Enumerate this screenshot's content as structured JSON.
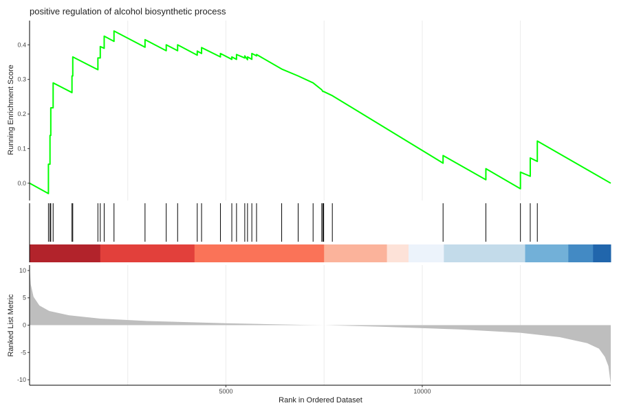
{
  "chart_data": {
    "type": "gsea",
    "title": "positive regulation of alcohol biosynthetic process",
    "xlabel": "Rank in Ordered Dataset",
    "x_range": [
      0,
      14800
    ],
    "x_ticks": [
      5000,
      10000
    ],
    "enrichment": {
      "ylabel": "Running Enrichment Score",
      "ylim": [
        -0.05,
        0.47
      ],
      "y_ticks": [
        0.0,
        0.1,
        0.2,
        0.3,
        0.4
      ],
      "y_tick_labels": [
        "0.0",
        "0.1",
        "0.2",
        "0.3",
        "0.4"
      ],
      "line_color": "#00ff00",
      "points": [
        [
          0,
          0.0
        ],
        [
          480,
          -0.03
        ],
        [
          480,
          0.055
        ],
        [
          520,
          0.055
        ],
        [
          520,
          0.138
        ],
        [
          540,
          0.138
        ],
        [
          540,
          0.218
        ],
        [
          600,
          0.218
        ],
        [
          600,
          0.29
        ],
        [
          1080,
          0.262
        ],
        [
          1080,
          0.31
        ],
        [
          1100,
          0.31
        ],
        [
          1100,
          0.365
        ],
        [
          1740,
          0.328
        ],
        [
          1740,
          0.362
        ],
        [
          1800,
          0.362
        ],
        [
          1800,
          0.395
        ],
        [
          1900,
          0.39
        ],
        [
          1900,
          0.425
        ],
        [
          2150,
          0.41
        ],
        [
          2150,
          0.44
        ],
        [
          2940,
          0.393
        ],
        [
          2940,
          0.415
        ],
        [
          3480,
          0.383
        ],
        [
          3480,
          0.4
        ],
        [
          3770,
          0.383
        ],
        [
          3770,
          0.4
        ],
        [
          4270,
          0.37
        ],
        [
          4270,
          0.382
        ],
        [
          4380,
          0.375
        ],
        [
          4380,
          0.392
        ],
        [
          4860,
          0.365
        ],
        [
          4860,
          0.375
        ],
        [
          5150,
          0.358
        ],
        [
          5150,
          0.365
        ],
        [
          5270,
          0.358
        ],
        [
          5270,
          0.372
        ],
        [
          5480,
          0.362
        ],
        [
          5480,
          0.368
        ],
        [
          5550,
          0.357
        ],
        [
          5550,
          0.365
        ],
        [
          5660,
          0.358
        ],
        [
          5660,
          0.375
        ],
        [
          5780,
          0.368
        ],
        [
          5780,
          0.372
        ],
        [
          6420,
          0.33
        ],
        [
          6840,
          0.31
        ],
        [
          7220,
          0.29
        ],
        [
          7440,
          0.27
        ],
        [
          7470,
          0.265
        ],
        [
          7490,
          0.265
        ],
        [
          7710,
          0.253
        ],
        [
          10530,
          0.058
        ],
        [
          10530,
          0.08
        ],
        [
          11620,
          0.01
        ],
        [
          11620,
          0.042
        ],
        [
          12500,
          -0.016
        ],
        [
          12500,
          0.032
        ],
        [
          12750,
          0.02
        ],
        [
          12750,
          0.073
        ],
        [
          12930,
          0.063
        ],
        [
          12930,
          0.122
        ],
        [
          14800,
          0.0
        ]
      ]
    },
    "hits": {
      "ranks": [
        480,
        520,
        540,
        600,
        1080,
        1100,
        1740,
        1800,
        1900,
        2150,
        2940,
        3480,
        3770,
        4270,
        4380,
        4860,
        5150,
        5270,
        5480,
        5550,
        5660,
        5780,
        6420,
        6840,
        7220,
        7440,
        7470,
        7490,
        7710,
        10530,
        11620,
        12500,
        12750,
        12930
      ]
    },
    "color_bar": {
      "segments": [
        {
          "from": 0,
          "to": 1800,
          "color": "#b2232b"
        },
        {
          "from": 1800,
          "to": 4200,
          "color": "#e2403b"
        },
        {
          "from": 4200,
          "to": 7500,
          "color": "#fa7358"
        },
        {
          "from": 7500,
          "to": 9100,
          "color": "#fbb39b"
        },
        {
          "from": 9100,
          "to": 9650,
          "color": "#fde2d8"
        },
        {
          "from": 9650,
          "to": 10550,
          "color": "#ecf3fb"
        },
        {
          "from": 10550,
          "to": 12620,
          "color": "#c3dbea"
        },
        {
          "from": 12620,
          "to": 13720,
          "color": "#72b0d8"
        },
        {
          "from": 13720,
          "to": 14350,
          "color": "#438ac4"
        },
        {
          "from": 14350,
          "to": 14800,
          "color": "#2166ac"
        }
      ]
    },
    "ranked_metric": {
      "ylabel": "Ranked List Metric",
      "ylim": [
        -11,
        11
      ],
      "y_ticks": [
        10,
        5,
        0,
        -5,
        -10
      ],
      "y_tick_labels": [
        "10",
        "5",
        "0",
        "-5",
        "-10"
      ],
      "fill_color": "#bebebe",
      "points": [
        [
          0,
          10.8
        ],
        [
          30,
          7.5
        ],
        [
          100,
          5.2
        ],
        [
          250,
          3.6
        ],
        [
          500,
          2.6
        ],
        [
          1000,
          1.8
        ],
        [
          1800,
          1.2
        ],
        [
          3000,
          0.75
        ],
        [
          5000,
          0.35
        ],
        [
          7000,
          0.05
        ],
        [
          7500,
          0.0
        ],
        [
          9000,
          -0.3
        ],
        [
          11000,
          -0.8
        ],
        [
          12500,
          -1.4
        ],
        [
          13500,
          -2.2
        ],
        [
          14200,
          -3.3
        ],
        [
          14500,
          -4.3
        ],
        [
          14650,
          -5.8
        ],
        [
          14740,
          -7.5
        ],
        [
          14800,
          -10.8
        ]
      ]
    }
  }
}
